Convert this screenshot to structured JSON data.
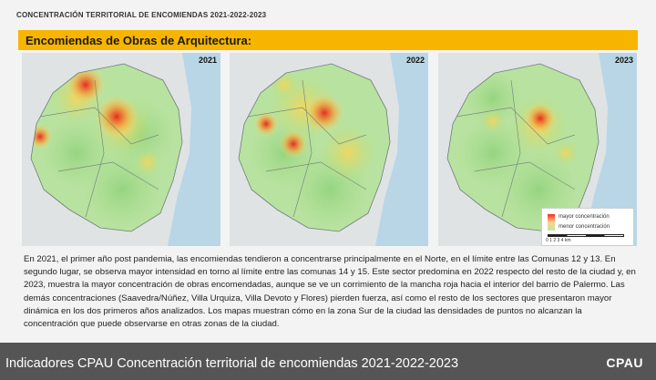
{
  "header": {
    "title": "CONCENTRACIÓN TERRITORIAL DE ENCOMIENDAS 2021-2022-2023"
  },
  "section": {
    "title": "Encomiendas de Obras de Arquitectura:"
  },
  "maps": [
    {
      "year": "2021"
    },
    {
      "year": "2022"
    },
    {
      "year": "2023"
    }
  ],
  "legend": {
    "high": "mayor concentración",
    "low": "menor concentración",
    "scale_ticks": "0   1   2   3   4 km"
  },
  "body": {
    "paragraph": "En 2021, el primer año post pandemia, las encomiendas tendieron a concentrarse principalmente en el Norte, en el límite entre las Comunas 12 y 13. En segundo lugar, se observa mayor intensidad en torno al límite entre las comunas 14 y 15. Este sector predomina en 2022 respecto del resto de la ciudad y, en 2023, muestra la mayor concentración de obras encomendadas, aunque se ve un corrimiento de la mancha roja hacia el interior del barrio de Palermo. Las demás concentraciones (Saavedra/Núñez, Villa Urquiza, Villa Devoto y Flores) pierden fuerza, así como el resto de los sectores que presentaron mayor dinámica en los dos primeros años analizados. Los mapas muestran cómo en la zona Sur de la ciudad las densidades de puntos no alcanzan la concentración que puede observarse en otras zonas de la ciudad."
  },
  "footer": {
    "title": "Indicadores CPAU Concentración territorial de encomiendas 2021-2022-2023",
    "logo": "CPAU"
  }
}
